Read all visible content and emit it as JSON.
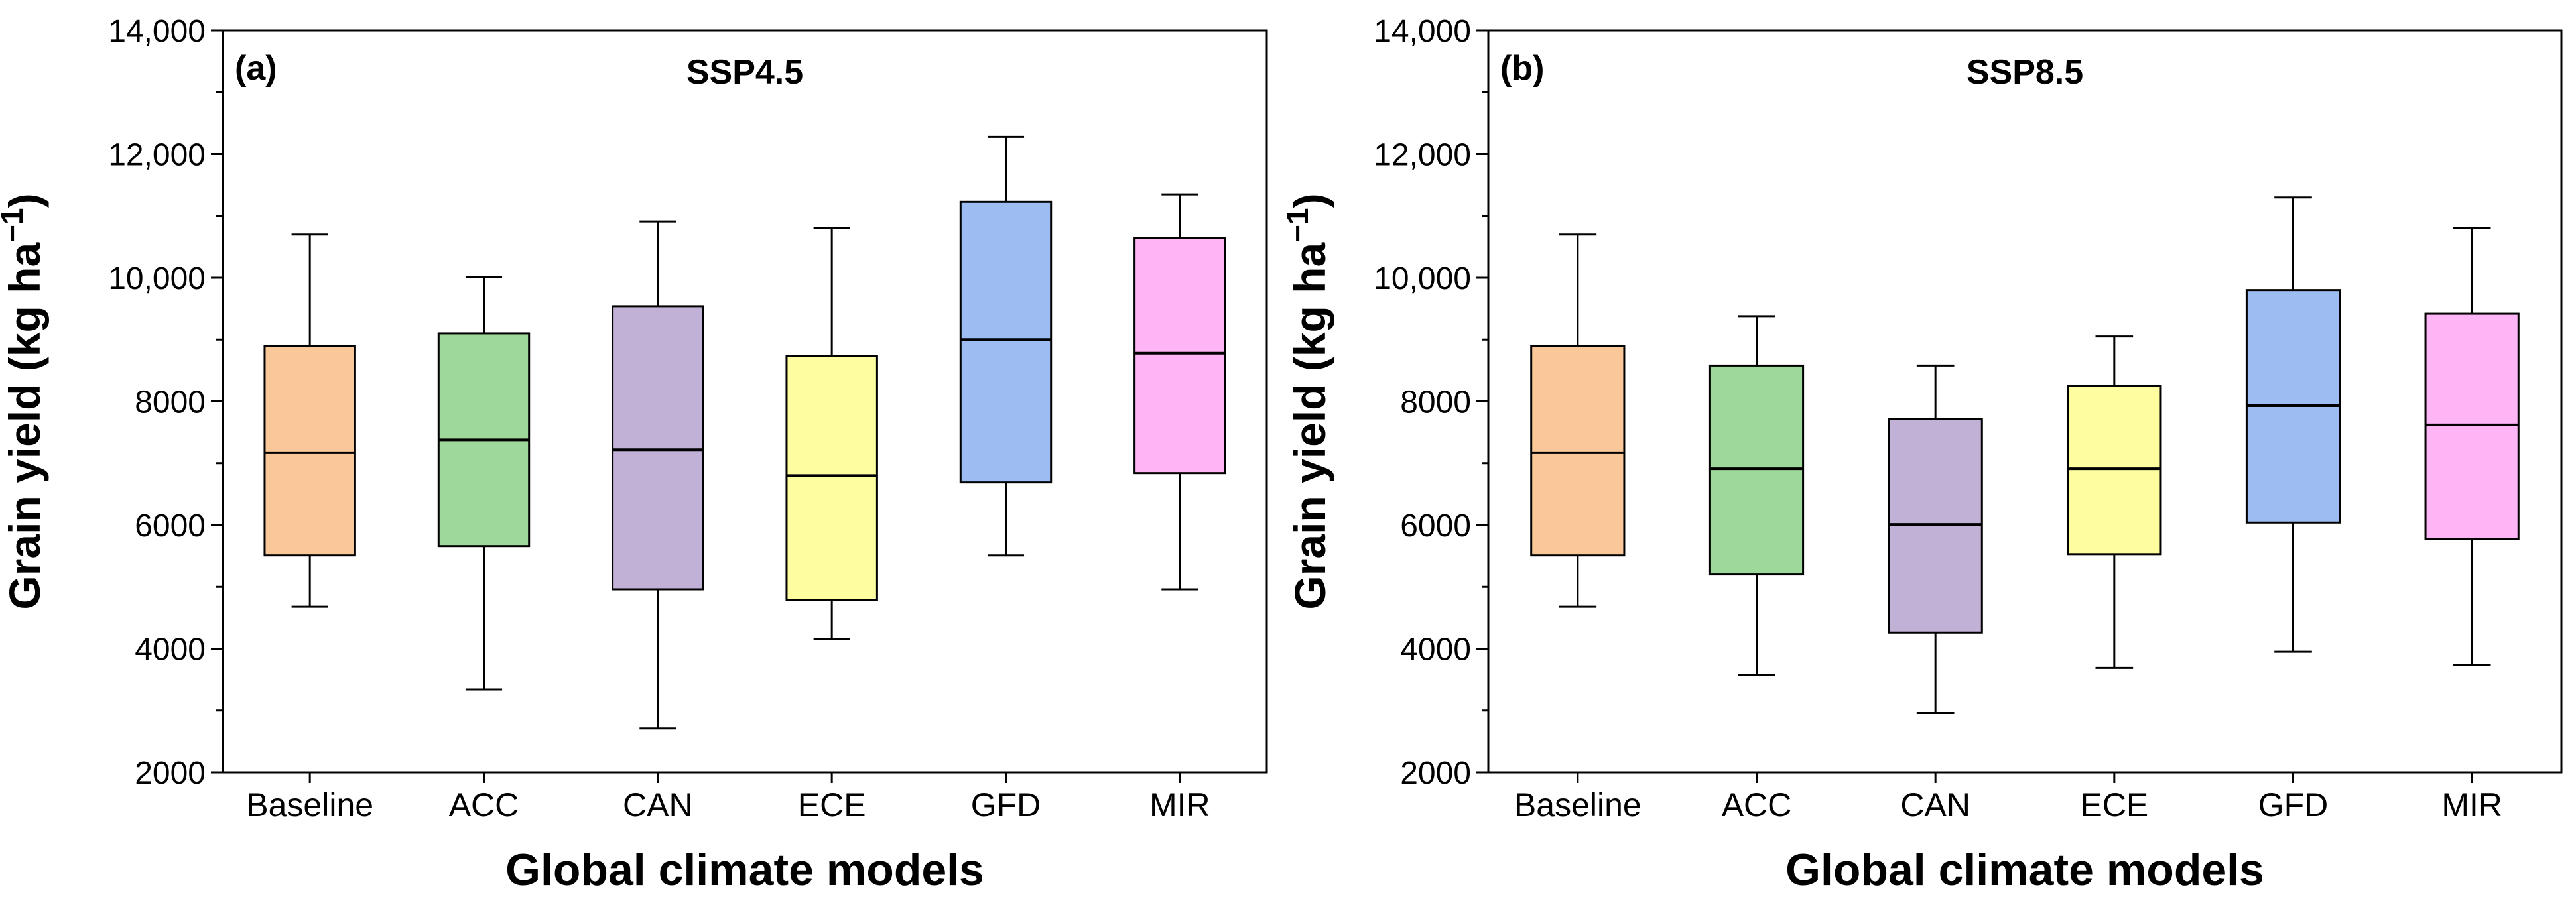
{
  "figure": {
    "xlabel": "Global climate models",
    "ylabel_main": "Grain yield (kg ha",
    "ylabel_sup": "−1",
    "ylabel_close": ")"
  },
  "chart_data": [
    {
      "type": "box",
      "panel_label": "(a)",
      "title": "SSP4.5",
      "xlabel": "Global climate models",
      "ylabel": "Grain yield (kg ha−1)",
      "ylim": [
        2000,
        14000
      ],
      "yticks": [
        2000,
        4000,
        6000,
        8000,
        10000,
        12000,
        14000
      ],
      "ytick_labels": [
        "2000",
        "4000",
        "6000",
        "8000",
        "10,000",
        "12,000",
        "14,000"
      ],
      "categories": [
        "Baseline",
        "ACC",
        "CAN",
        "ECE",
        "GFD",
        "MIR"
      ],
      "colors": [
        "#FAC898",
        "#9ED89A",
        "#C2B1D6",
        "#FEFDA0",
        "#9DBDF2",
        "#FDB5F6"
      ],
      "boxes": [
        {
          "whisker_low": 4680,
          "q1": 5510,
          "median": 7170,
          "q3": 8900,
          "whisker_high": 10700
        },
        {
          "whisker_low": 3340,
          "q1": 5660,
          "median": 7380,
          "q3": 9100,
          "whisker_high": 10010
        },
        {
          "whisker_low": 2710,
          "q1": 4960,
          "median": 7220,
          "q3": 9540,
          "whisker_high": 10910
        },
        {
          "whisker_low": 4150,
          "q1": 4790,
          "median": 6800,
          "q3": 8730,
          "whisker_high": 10800
        },
        {
          "whisker_low": 5510,
          "q1": 6690,
          "median": 9000,
          "q3": 11230,
          "whisker_high": 12280
        },
        {
          "whisker_low": 4960,
          "q1": 6840,
          "median": 8780,
          "q3": 10640,
          "whisker_high": 11350
        }
      ]
    },
    {
      "type": "box",
      "panel_label": "(b)",
      "title": "SSP8.5",
      "xlabel": "Global climate models",
      "ylabel": "Grain yield (kg ha−1)",
      "ylim": [
        2000,
        14000
      ],
      "yticks": [
        2000,
        4000,
        6000,
        8000,
        10000,
        12000,
        14000
      ],
      "ytick_labels": [
        "2000",
        "4000",
        "6000",
        "8000",
        "10,000",
        "12,000",
        "14,000"
      ],
      "categories": [
        "Baseline",
        "ACC",
        "CAN",
        "ECE",
        "GFD",
        "MIR"
      ],
      "colors": [
        "#FAC898",
        "#9ED89A",
        "#C2B1D6",
        "#FEFDA0",
        "#9DBDF2",
        "#FDB5F6"
      ],
      "boxes": [
        {
          "whisker_low": 4680,
          "q1": 5510,
          "median": 7170,
          "q3": 8900,
          "whisker_high": 10700
        },
        {
          "whisker_low": 3580,
          "q1": 5200,
          "median": 6910,
          "q3": 8580,
          "whisker_high": 9380
        },
        {
          "whisker_low": 2960,
          "q1": 4260,
          "median": 6010,
          "q3": 7720,
          "whisker_high": 8580
        },
        {
          "whisker_low": 3690,
          "q1": 5530,
          "median": 6910,
          "q3": 8250,
          "whisker_high": 9050
        },
        {
          "whisker_low": 3950,
          "q1": 6040,
          "median": 7930,
          "q3": 9800,
          "whisker_high": 11300
        },
        {
          "whisker_low": 3740,
          "q1": 5780,
          "median": 7620,
          "q3": 9420,
          "whisker_high": 10810
        }
      ]
    }
  ]
}
